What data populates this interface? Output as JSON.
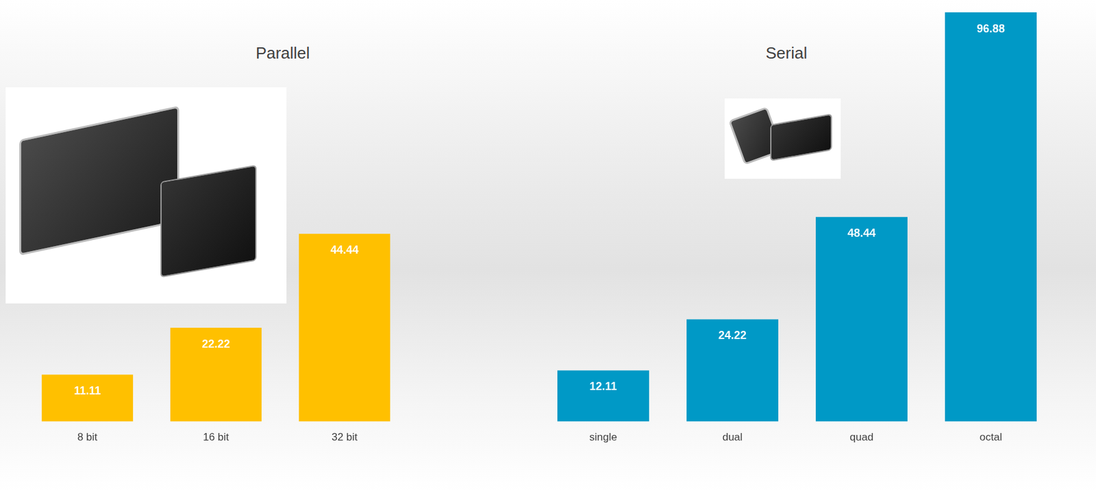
{
  "chart_data": [
    {
      "type": "bar",
      "title": "Parallel",
      "categories": [
        "8 bit",
        "16 bit",
        "32 bit"
      ],
      "values": [
        11.11,
        22.22,
        44.44
      ],
      "color": "#ffc000",
      "ylim": [
        0,
        97
      ],
      "data_labels": true,
      "tick_labels": "x",
      "grid": false
    },
    {
      "type": "bar",
      "title": "Serial",
      "categories": [
        "single",
        "dual",
        "quad",
        "octal"
      ],
      "values": [
        12.11,
        24.22,
        48.44,
        96.88
      ],
      "color": "#0099c6",
      "ylim": [
        0,
        97
      ],
      "data_labels": true,
      "tick_labels": "x",
      "grid": false
    }
  ]
}
